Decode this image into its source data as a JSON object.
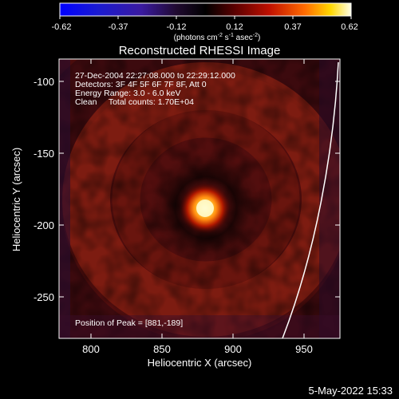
{
  "colorbar": {
    "tick_labels": [
      "-0.62",
      "-0.37",
      "-0.12",
      "0.12",
      "0.37",
      "0.62"
    ],
    "unit_prefix": "(photons cm",
    "unit_exp1": "-2",
    "unit_mid": " s",
    "unit_exp2": "-1",
    "unit_mid2": " asec",
    "unit_exp3": "-2",
    "unit_suffix": ")"
  },
  "plot": {
    "title": "Reconstructed RHESSI Image",
    "xlabel": "Heliocentric X (arcsec)",
    "ylabel": "Heliocentric Y (arcsec)",
    "xticks": [
      "800",
      "850",
      "900",
      "950"
    ],
    "yticks": [
      "-100",
      "-150",
      "-200",
      "-250"
    ],
    "info_lines": [
      "27-Dec-2004 22:27:08.000 to 22:29:12.000",
      "Detectors: 3F 4F 5F 6F 7F 8F, Att 0",
      "Energy Range: 3.0 - 6.0 keV",
      "Clean     Total counts: 1.70E+04"
    ],
    "peak_label": "Position of Peak = [881,-189]"
  },
  "footer": {
    "timestamp": "5-May-2022 15:33"
  },
  "colors": {
    "background": "#000000",
    "text": "#ffffff",
    "limb": "#ffffff"
  }
}
